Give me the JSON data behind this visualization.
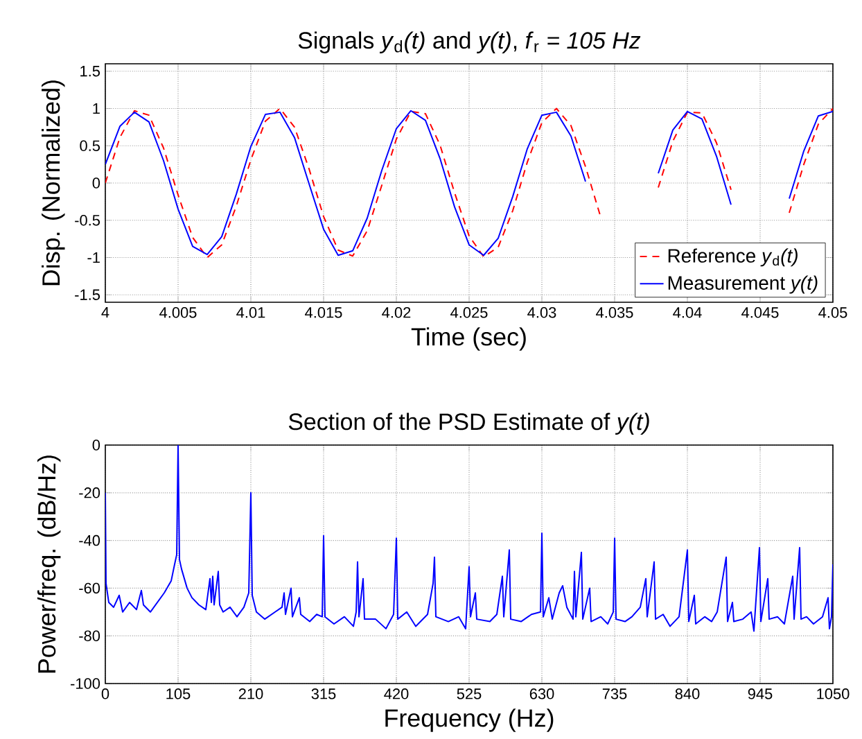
{
  "chart_data": [
    {
      "type": "line",
      "title": "Signals *y*$_{d}$*(t)* and *y(t)*, *f*$_{r}$ *= 105 Hz*",
      "xlabel": "Time (sec)",
      "ylabel": "Disp. (Normalized)",
      "x": [
        4,
        4.001,
        4.002,
        4.003,
        4.004,
        4.005,
        4.006,
        4.007,
        4.008,
        4.009,
        4.01,
        4.011,
        4.012,
        4.013,
        4.014,
        4.015,
        4.016,
        4.017,
        4.018,
        4.019,
        4.02,
        4.021,
        4.022,
        4.023,
        4.024,
        4.025,
        4.026,
        4.027,
        4.028,
        4.029,
        4.03,
        4.031,
        4.032,
        4.033,
        4.034,
        4.035,
        4.036,
        4.037,
        4.038,
        4.039,
        4.04,
        4.041,
        4.042,
        4.043,
        4.044,
        4.045,
        4.046,
        4.047,
        4.048,
        4.049,
        4.05
      ],
      "series": [
        {
          "name": "Reference *y*$_{d}$*(t)*",
          "color": "#ff0000",
          "line_style": "dashed",
          "values": [
            0,
            0.61,
            0.97,
            0.91,
            0.47,
            -0.16,
            -0.73,
            -1.0,
            -0.83,
            -0.31,
            0.31,
            0.83,
            1.0,
            0.75,
            0.19,
            -0.45,
            -0.9,
            -0.98,
            -0.64,
            -0.03,
            0.59,
            0.96,
            0.93,
            0.51,
            -0.13,
            -0.71,
            -0.99,
            -0.86,
            -0.37,
            0.28,
            0.81,
            1.0,
            0.77,
            0.22,
            -0.43,
            null,
            null,
            null,
            -0.06,
            0.56,
            0.95,
            0.94,
            0.54,
            -0.09,
            null,
            null,
            null,
            -0.4,
            0.25,
            0.79,
            1.0
          ]
        },
        {
          "name": "Measurement *y(t)*",
          "color": "#0000ff",
          "line_style": "solid",
          "values": [
            0.25,
            0.76,
            0.95,
            0.82,
            0.3,
            -0.35,
            -0.85,
            -0.96,
            -0.72,
            -0.15,
            0.49,
            0.92,
            0.95,
            0.61,
            -0.01,
            -0.62,
            -0.97,
            -0.91,
            -0.47,
            0.17,
            0.73,
            0.97,
            0.84,
            0.33,
            -0.32,
            -0.83,
            -0.97,
            -0.74,
            -0.18,
            0.46,
            0.91,
            0.95,
            0.63,
            0.02,
            null,
            null,
            null,
            null,
            0.13,
            0.71,
            0.96,
            0.86,
            0.36,
            -0.29,
            null,
            null,
            null,
            -0.21,
            0.43,
            0.9,
            0.96
          ]
        }
      ],
      "xlim": [
        4,
        4.05
      ],
      "ylim": [
        -1.6,
        1.6
      ],
      "xticks": [
        4,
        4.005,
        4.01,
        4.015,
        4.02,
        4.025,
        4.03,
        4.035,
        4.04,
        4.045,
        4.05
      ],
      "yticks": [
        -1.5,
        -1,
        -0.5,
        0,
        0.5,
        1,
        1.5
      ],
      "grid": true,
      "legend": "bottom right"
    },
    {
      "type": "line",
      "title": "Section of the PSD Estimate of *y(t)*",
      "xlabel": "Frequency (Hz)",
      "ylabel": "Power/freq. (dB/Hz)",
      "series": [
        {
          "color": "#0000ff",
          "line_style": "solid",
          "x": [
            0,
            1,
            5,
            12,
            20,
            25,
            35,
            45,
            52,
            55,
            65,
            75,
            85,
            95,
            100,
            103,
            105,
            107,
            110,
            118,
            125,
            135,
            145,
            151,
            153,
            155,
            157,
            163,
            165,
            170,
            180,
            190,
            200,
            207,
            210,
            212,
            218,
            230,
            245,
            255,
            258,
            260,
            268,
            270,
            280,
            282,
            295,
            305,
            313,
            315,
            317,
            330,
            345,
            358,
            362,
            364,
            366,
            372,
            374,
            390,
            405,
            416,
            420,
            422,
            435,
            448,
            465,
            473,
            475,
            477,
            495,
            510,
            520,
            525,
            527,
            534,
            536,
            555,
            565,
            573,
            575,
            583,
            585,
            600,
            615,
            628,
            630,
            632,
            640,
            645,
            655,
            660,
            666,
            675,
            677,
            679,
            687,
            689,
            699,
            701,
            715,
            725,
            733,
            735,
            737,
            750,
            760,
            772,
            780,
            782,
            792,
            794,
            805,
            815,
            828,
            840,
            842,
            850,
            852,
            865,
            875,
            883,
            896,
            898,
            905,
            907,
            920,
            932,
            936,
            944,
            946,
            956,
            958,
            970,
            980,
            992,
            994,
            1002,
            1004,
            1012,
            1022,
            1035,
            1043,
            1045,
            1048,
            1050
          ],
          "values": [
            -20,
            -58,
            -66,
            -68,
            -63,
            -70,
            -66,
            -69,
            -61,
            -67,
            -70,
            -66,
            -62,
            -57,
            -50,
            -46,
            0,
            -48,
            -52,
            -60,
            -64,
            -67,
            -69,
            -56,
            -66,
            -55,
            -67,
            -53,
            -67,
            -70,
            -68,
            -72,
            -68,
            -62,
            -20,
            -63,
            -70,
            -73,
            -70,
            -68,
            -62,
            -71,
            -60,
            -72,
            -64,
            -71,
            -74,
            -71,
            -72,
            -38,
            -72,
            -75,
            -72,
            -76,
            -70,
            -49,
            -72,
            -56,
            -73,
            -73,
            -77,
            -71,
            -39,
            -73,
            -70,
            -76,
            -71,
            -58,
            -47,
            -72,
            -74,
            -72,
            -77,
            -51,
            -72,
            -62,
            -73,
            -74,
            -71,
            -55,
            -72,
            -44,
            -73,
            -74,
            -71,
            -70,
            -37,
            -72,
            -64,
            -73,
            -62,
            -59,
            -68,
            -73,
            -53,
            -72,
            -45,
            -73,
            -60,
            -74,
            -72,
            -75,
            -70,
            -39,
            -73,
            -74,
            -72,
            -68,
            -56,
            -72,
            -49,
            -73,
            -71,
            -76,
            -72,
            -44,
            -74,
            -63,
            -75,
            -72,
            -74,
            -70,
            -47,
            -74,
            -66,
            -74,
            -73,
            -70,
            -78,
            -43,
            -74,
            -56,
            -73,
            -72,
            -75,
            -55,
            -73,
            -43,
            -73,
            -72,
            -75,
            -72,
            -64,
            -77,
            -72,
            -50
          ]
        }
      ],
      "xlim": [
        0,
        1050
      ],
      "ylim": [
        -100,
        0
      ],
      "xticks": [
        0,
        105,
        210,
        315,
        420,
        525,
        630,
        735,
        840,
        945,
        1050
      ],
      "yticks": [
        -100,
        -80,
        -60,
        -40,
        -20,
        0
      ],
      "grid": true
    }
  ]
}
